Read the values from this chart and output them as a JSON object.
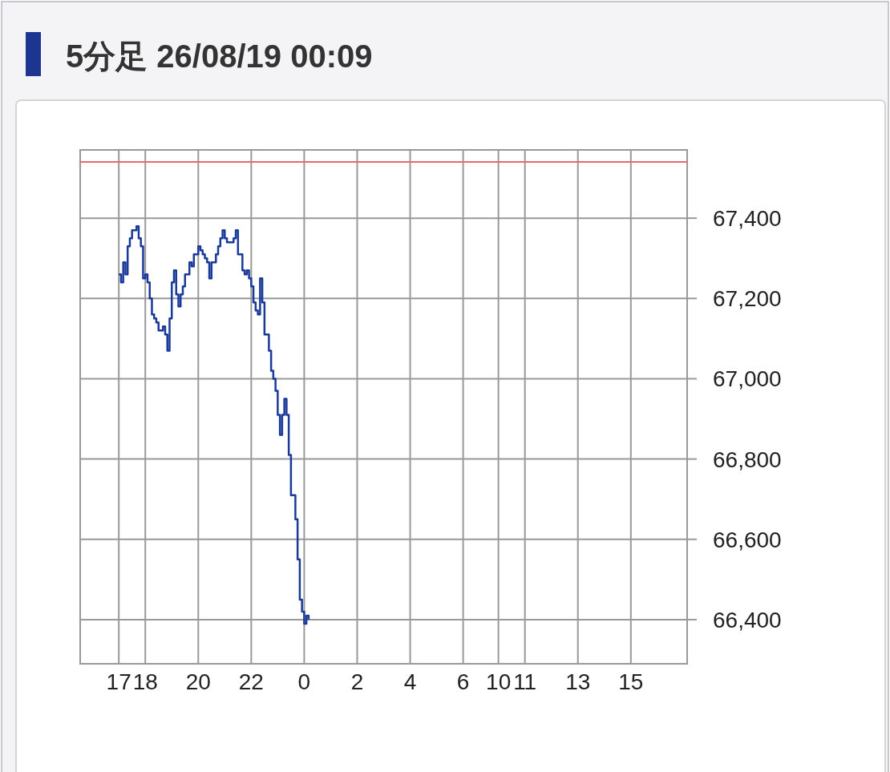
{
  "chart_data": {
    "type": "step",
    "title": "5分足 26/08/19 00:09",
    "categories": [
      null,
      null,
      null,
      null,
      null,
      null,
      null,
      null,
      null,
      null,
      null,
      null,
      null,
      null,
      null,
      null,
      null,
      "17",
      null,
      null,
      null,
      null,
      null,
      null,
      null,
      null,
      null,
      null,
      null,
      "18",
      null,
      null,
      null,
      null,
      null,
      null,
      null,
      null,
      null,
      null,
      null,
      null,
      null,
      null,
      null,
      null,
      null,
      null,
      null,
      null,
      null,
      null,
      null,
      "20",
      null,
      null,
      null,
      null,
      null,
      null,
      null,
      null,
      null,
      null,
      null,
      null,
      null,
      null,
      null,
      null,
      null,
      null,
      null,
      null,
      null,
      null,
      null,
      "22",
      null,
      null,
      null,
      null,
      null,
      null,
      null,
      null,
      null,
      null,
      null,
      null,
      null,
      null,
      null,
      null,
      null,
      null,
      null,
      null,
      null,
      null,
      null,
      "0",
      null,
      null,
      null,
      null,
      null,
      null,
      null,
      null,
      null,
      null,
      null,
      null,
      null,
      null,
      null,
      null,
      null,
      null,
      null,
      null,
      null,
      null,
      null,
      "2",
      null,
      null,
      null,
      null,
      null,
      null,
      null,
      null,
      null,
      null,
      null,
      null,
      null,
      null,
      null,
      null,
      null,
      null,
      null,
      null,
      null,
      null,
      null,
      "4",
      null,
      null,
      null,
      null,
      null,
      null,
      null,
      null,
      null,
      null,
      null,
      null,
      null,
      null,
      null,
      null,
      null,
      null,
      null,
      null,
      null,
      null,
      null,
      "6",
      null,
      null,
      null,
      null,
      null,
      null,
      null,
      null,
      null,
      null,
      null,
      null,
      null,
      null,
      null,
      "10",
      null,
      null,
      null,
      null,
      null,
      null,
      null,
      null,
      null,
      null,
      null,
      "11",
      null,
      null,
      null,
      null,
      null,
      null,
      null,
      null,
      null,
      null,
      null,
      null,
      null,
      null,
      null,
      null,
      null,
      null,
      null,
      null,
      null,
      null,
      null,
      "13",
      null,
      null,
      null,
      null,
      null,
      null,
      null,
      null,
      null,
      null,
      null,
      null,
      null,
      null,
      null,
      null,
      null,
      null,
      null,
      null,
      null,
      null,
      null,
      "15",
      null,
      null,
      null,
      null,
      null,
      null,
      null,
      null,
      null,
      null,
      null,
      null,
      null,
      null,
      null,
      null,
      null,
      null,
      null,
      null,
      null,
      null,
      null,
      null,
      null
    ],
    "series": [
      {
        "color": "#1a3a9a",
        "values": [
          null,
          null,
          null,
          null,
          null,
          null,
          null,
          null,
          null,
          null,
          null,
          null,
          null,
          null,
          null,
          null,
          null,
          67260,
          67240,
          67290,
          67260,
          67330,
          67350,
          67370,
          67370,
          67380,
          67350,
          67330,
          67250,
          67260,
          67240,
          67200,
          67160,
          67150,
          67140,
          67120,
          67120,
          67130,
          67110,
          67070,
          67150,
          67240,
          67270,
          67210,
          67180,
          67210,
          67230,
          67260,
          67260,
          67290,
          67280,
          67310,
          67310,
          67330,
          67320,
          67310,
          67300,
          67290,
          67250,
          67290,
          67290,
          67310,
          67330,
          67350,
          67370,
          67350,
          67340,
          67340,
          67340,
          67350,
          67370,
          67310,
          67310,
          67270,
          67260,
          67270,
          67250,
          67230,
          67190,
          67170,
          67160,
          67250,
          67190,
          67110,
          67110,
          67070,
          67020,
          67000,
          66970,
          66910,
          66860,
          66910,
          66950,
          66910,
          66810,
          66710,
          66710,
          66650,
          66550,
          66450,
          66420,
          66390,
          66410,
          66400,
          null,
          null,
          null,
          null,
          null,
          null,
          null,
          null,
          null,
          null,
          null,
          null,
          null,
          null,
          null,
          null,
          null,
          null,
          null,
          null,
          null,
          null,
          null,
          null,
          null,
          null,
          null,
          null,
          null,
          null,
          null,
          null,
          null,
          null,
          null,
          null,
          null,
          null,
          null,
          null,
          null,
          null,
          null,
          null,
          null,
          null,
          null,
          null,
          null,
          null,
          null,
          null,
          null,
          null,
          null,
          null,
          null,
          null,
          null,
          null,
          null,
          null,
          null,
          null,
          null,
          null,
          null,
          null,
          null,
          null,
          null,
          null,
          null,
          null,
          null,
          null,
          null,
          null,
          null,
          null,
          null,
          null,
          null,
          null,
          null,
          null,
          null,
          null,
          null,
          null,
          null,
          null,
          null,
          null,
          null,
          null,
          null,
          null,
          null,
          null,
          null,
          null,
          null,
          null,
          null,
          null,
          null,
          null,
          null,
          null,
          null,
          null,
          null,
          null,
          null,
          null,
          null,
          null,
          null,
          null,
          null,
          null,
          null,
          null,
          null,
          null,
          null,
          null,
          null,
          null,
          null,
          null,
          null,
          null,
          null,
          null,
          null,
          null,
          null,
          null,
          null,
          null,
          null,
          null,
          null,
          null,
          null,
          null,
          null,
          null,
          null,
          null,
          null,
          null,
          null,
          null,
          null,
          null,
          null,
          null,
          null,
          null,
          null,
          null,
          null,
          null,
          null,
          null,
          null,
          null,
          null
        ]
      }
    ],
    "ylim": [
      66290,
      67570
    ],
    "yticks": [
      {
        "value": 66400,
        "label": "66,400"
      },
      {
        "value": 66600,
        "label": "66,600"
      },
      {
        "value": 66800,
        "label": "66,800"
      },
      {
        "value": 67000,
        "label": "67,000"
      },
      {
        "value": 67200,
        "label": "67,200"
      },
      {
        "value": 67400,
        "label": "67,400"
      }
    ],
    "grid": true,
    "ref_lines": [
      {
        "axis": "y",
        "value": 67540,
        "color": "#e86a6a"
      }
    ]
  }
}
